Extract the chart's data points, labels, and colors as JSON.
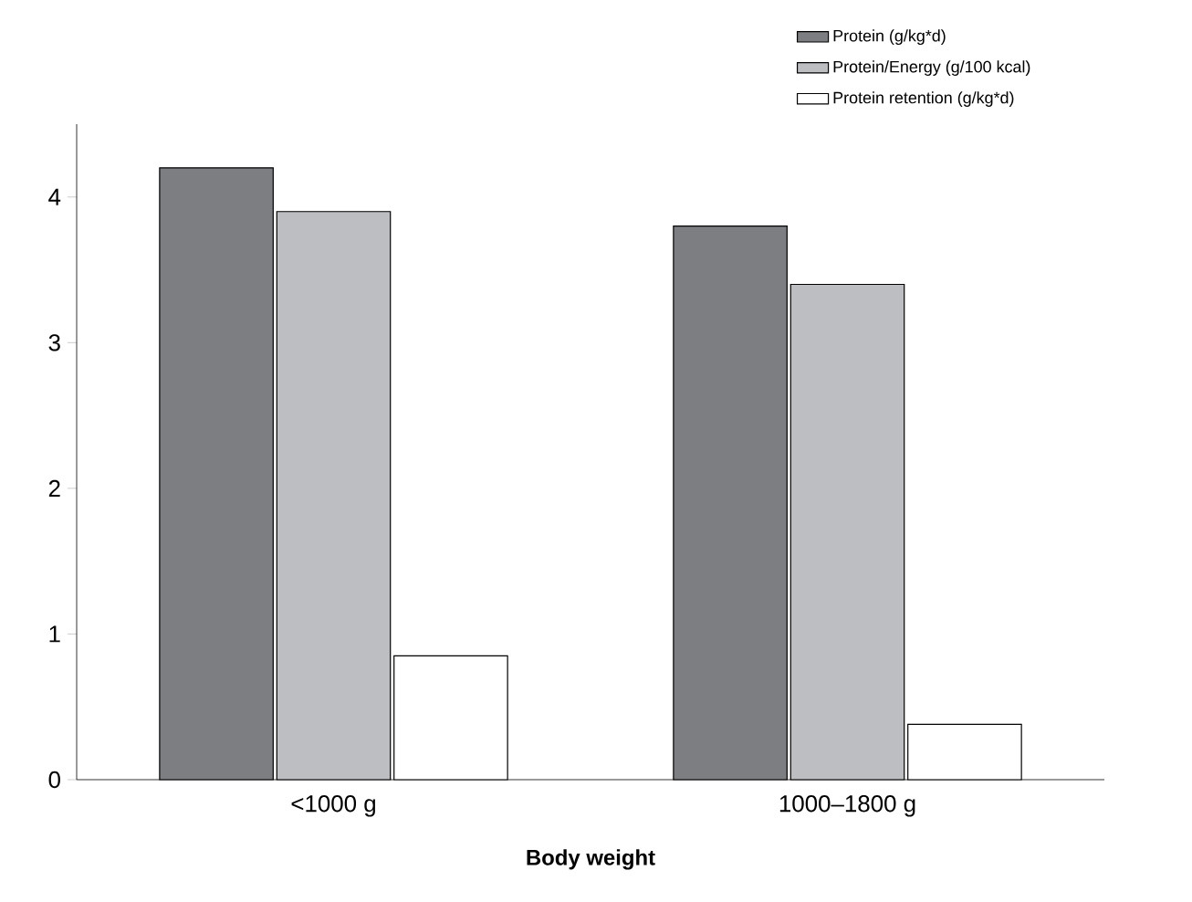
{
  "chart_data": {
    "type": "bar",
    "xlabel": "Body weight",
    "categories": [
      "<1000 g",
      "1000–1800 g"
    ],
    "series": [
      {
        "name": "Protein (g/kg*d)",
        "color": "#7d7e82",
        "values": [
          4.2,
          3.8
        ]
      },
      {
        "name": "Protein/Energy (g/100 kcal)",
        "color": "#bdbec2",
        "values": [
          3.9,
          3.4
        ]
      },
      {
        "name": "Protein retention (g/kg*d)",
        "color": "#ffffff",
        "values": [
          0.85,
          0.38
        ]
      }
    ],
    "ylim": [
      0,
      4.5
    ],
    "yticks": [
      0,
      1,
      2,
      3,
      4
    ],
    "grid": false,
    "legend": "top right"
  }
}
